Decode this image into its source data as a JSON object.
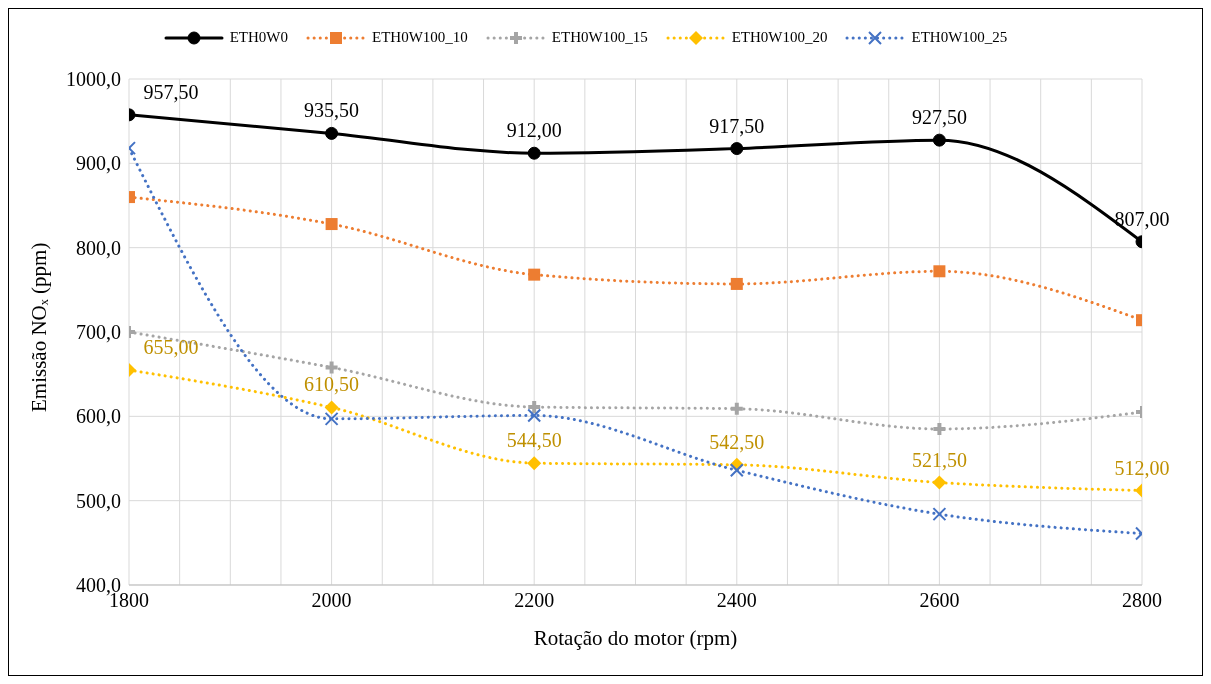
{
  "chart_data": {
    "type": "line",
    "xlabel": "Rotação do motor (rpm)",
    "ylabel": "Emissão NOₓ (ppm)",
    "x": [
      1800,
      2000,
      2200,
      2400,
      2600,
      2800
    ],
    "xlim": [
      1800,
      2800
    ],
    "xticks": [
      1800,
      {
        "value": 1850,
        "label": null
      },
      {
        "value": 1900,
        "label": null
      },
      {
        "value": 1950,
        "label": null
      },
      2000,
      {
        "value": 2050,
        "label": null
      },
      {
        "value": 2100,
        "label": null
      },
      {
        "value": 2150,
        "label": null
      },
      2200,
      {
        "value": 2250,
        "label": null
      },
      {
        "value": 2300,
        "label": null
      },
      {
        "value": 2350,
        "label": null
      },
      2400,
      {
        "value": 2450,
        "label": null
      },
      {
        "value": 2500,
        "label": null
      },
      {
        "value": 2550,
        "label": null
      },
      2600,
      {
        "value": 2650,
        "label": null
      },
      {
        "value": 2700,
        "label": null
      },
      {
        "value": 2750,
        "label": null
      },
      2800
    ],
    "ylim": [
      400,
      1000
    ],
    "yticks": [
      {
        "value": 400,
        "label": "400,0"
      },
      {
        "value": 500,
        "label": "500,0"
      },
      {
        "value": 600,
        "label": "600,0"
      },
      {
        "value": 700,
        "label": "700,0"
      },
      {
        "value": 800,
        "label": "800,0"
      },
      {
        "value": 900,
        "label": "900,0"
      },
      {
        "value": 1000,
        "label": "1000,0"
      }
    ],
    "grid": true,
    "legend": "top",
    "series": [
      {
        "name": "ETH0W0",
        "color": "#000000",
        "marker": "circle",
        "line_style": "solid",
        "values": [
          957.5,
          935.5,
          912,
          917.5,
          927.5,
          807
        ],
        "value_labels": [
          "957,50",
          "935,50",
          "912,00",
          "917,50",
          "927,50",
          "807,00"
        ]
      },
      {
        "name": "ETH0W100_10",
        "color": "#ed7d31",
        "marker": "square",
        "line_style": "dotted",
        "values": [
          860,
          828,
          768,
          757,
          772,
          714
        ]
      },
      {
        "name": "ETH0W100_15",
        "color": "#a5a5a5",
        "marker": "cross",
        "line_style": "dotted",
        "values": [
          700,
          658,
          611,
          609,
          585,
          605
        ]
      },
      {
        "name": "ETH0W100_20",
        "color": "#ffc000",
        "marker": "diamond",
        "line_style": "dotted",
        "values": [
          655,
          610.5,
          544.5,
          542.5,
          521.5,
          512
        ],
        "value_labels": [
          "655,00",
          "610,50",
          "544,50",
          "542,50",
          "521,50",
          "512,00"
        ]
      },
      {
        "name": "ETH0W100_25",
        "color": "#4472c4",
        "marker": "x",
        "line_style": "dotted",
        "values": [
          918,
          597,
          601,
          536,
          484,
          461
        ]
      }
    ]
  }
}
